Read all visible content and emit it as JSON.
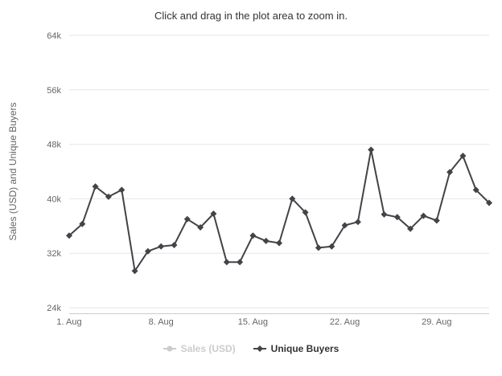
{
  "chart_data": {
    "type": "line",
    "title": "Click and drag in the plot area to zoom in.",
    "ylabel": "Sales (USD) and Unique Buyers",
    "ylim": [
      24000,
      64000
    ],
    "ytick_step": 8000,
    "ytick_labels": [
      "24k",
      "32k",
      "40k",
      "48k",
      "56k",
      "64k"
    ],
    "xtick_labels": [
      "1. Aug",
      "8. Aug",
      "15. Aug",
      "22. Aug",
      "29. Aug"
    ],
    "xtick_positions": [
      0,
      7,
      14,
      21,
      28
    ],
    "grid": true,
    "legend_position": "bottom",
    "colors": {
      "grid": "#e6e6e6",
      "axis_line": "#cccccc",
      "axis_text": "#666666",
      "title_text": "#333333",
      "legend_text": "#333333",
      "legend_disabled": "#cccccc"
    },
    "series": [
      {
        "name": "Sales (USD)",
        "visible": false,
        "color": "#cccccc",
        "marker": "circle"
      },
      {
        "name": "Unique Buyers",
        "visible": true,
        "color": "#434348",
        "marker": "diamond",
        "dates": [
          "1 Aug",
          "2 Aug",
          "3 Aug",
          "4 Aug",
          "5 Aug",
          "6 Aug",
          "7 Aug",
          "8 Aug",
          "9 Aug",
          "10 Aug",
          "11 Aug",
          "12 Aug",
          "13 Aug",
          "14 Aug",
          "15 Aug",
          "16 Aug",
          "17 Aug",
          "18 Aug",
          "19 Aug",
          "20 Aug",
          "21 Aug",
          "22 Aug",
          "23 Aug",
          "24 Aug",
          "25 Aug",
          "26 Aug",
          "27 Aug",
          "28 Aug",
          "29 Aug",
          "30 Aug",
          "31 Aug",
          "1 Sep",
          "2 Sep"
        ],
        "values": [
          34600,
          36300,
          41800,
          40300,
          41300,
          29400,
          32300,
          33000,
          33200,
          37000,
          35800,
          37800,
          30700,
          30700,
          34600,
          33800,
          33500,
          40000,
          38000,
          32800,
          33000,
          36100,
          36600,
          47200,
          37700,
          37300,
          35600,
          37500,
          36800,
          43900,
          46300,
          41300,
          39400
        ]
      }
    ]
  }
}
